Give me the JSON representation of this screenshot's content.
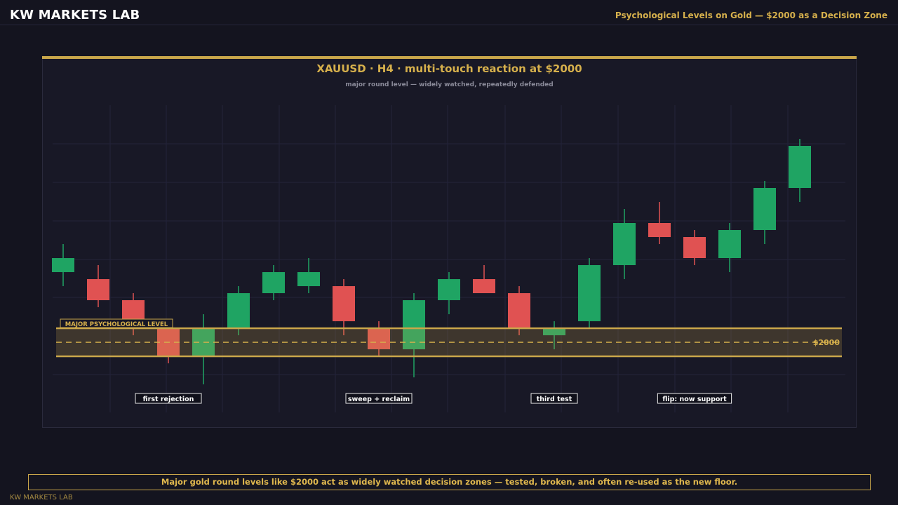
{
  "header": {
    "brand": "KW MARKETS LAB",
    "headline": "Psychological Levels on Gold — $2000 as a Decision Zone"
  },
  "footer": {
    "caption": "Major gold round levels like $2000 act as widely watched decision zones — tested, broken, and often re-used as the new floor.",
    "brand": "KW MARKETS LAB"
  },
  "colors": {
    "bull": "#1fa463",
    "bear": "#e05252",
    "gold": "#c9a64a",
    "background": "#14141f",
    "panel": "#181826"
  },
  "chart_data": {
    "type": "candlestick",
    "title": "XAUUSD · H4 · multi-touch reaction at $2000",
    "subtitle": "major round level — widely watched, repeatedly defended",
    "xlabel": "",
    "ylabel": "",
    "grid": true,
    "level": {
      "value": 2000,
      "label": "$2000",
      "zone_low": 1990,
      "zone_high": 2010,
      "zone_label": "MAJOR PSYCHOLOGICAL LEVEL"
    },
    "candles": [
      {
        "open": 2050,
        "high": 2070,
        "low": 2040,
        "close": 2060
      },
      {
        "open": 2045,
        "high": 2055,
        "low": 2025,
        "close": 2030
      },
      {
        "open": 2030,
        "high": 2035,
        "low": 2005,
        "close": 2015
      },
      {
        "open": 2010,
        "high": 2015,
        "low": 1985,
        "close": 1990
      },
      {
        "open": 1990,
        "high": 2020,
        "low": 1970,
        "close": 2010
      },
      {
        "open": 2010,
        "high": 2040,
        "low": 2005,
        "close": 2035
      },
      {
        "open": 2035,
        "high": 2055,
        "low": 2030,
        "close": 2050
      },
      {
        "open": 2040,
        "high": 2060,
        "low": 2035,
        "close": 2050
      },
      {
        "open": 2040,
        "high": 2045,
        "low": 2005,
        "close": 2015
      },
      {
        "open": 2010,
        "high": 2015,
        "low": 1990,
        "close": 1995
      },
      {
        "open": 1995,
        "high": 2035,
        "low": 1975,
        "close": 2030
      },
      {
        "open": 2030,
        "high": 2050,
        "low": 2020,
        "close": 2045
      },
      {
        "open": 2045,
        "high": 2055,
        "low": 2035,
        "close": 2035
      },
      {
        "open": 2035,
        "high": 2040,
        "low": 2005,
        "close": 2010
      },
      {
        "open": 2005,
        "high": 2015,
        "low": 1995,
        "close": 2010
      },
      {
        "open": 2015,
        "high": 2060,
        "low": 2010,
        "close": 2055
      },
      {
        "open": 2055,
        "high": 2095,
        "low": 2045,
        "close": 2085
      },
      {
        "open": 2085,
        "high": 2100,
        "low": 2070,
        "close": 2075
      },
      {
        "open": 2075,
        "high": 2080,
        "low": 2055,
        "close": 2060
      },
      {
        "open": 2060,
        "high": 2085,
        "low": 2050,
        "close": 2080
      },
      {
        "open": 2080,
        "high": 2115,
        "low": 2070,
        "close": 2110
      },
      {
        "open": 2110,
        "high": 2145,
        "low": 2100,
        "close": 2140
      }
    ],
    "annotations": [
      {
        "label": "first rejection",
        "candle": 3
      },
      {
        "label": "sweep + reclaim",
        "candle": 9
      },
      {
        "label": "third test",
        "candle": 14
      },
      {
        "label": "flip: now support",
        "candle": 18
      }
    ],
    "ylim": [
      1965,
      2150
    ]
  }
}
